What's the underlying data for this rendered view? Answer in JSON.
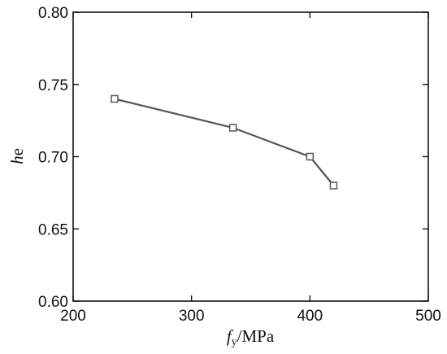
{
  "chart_data": {
    "type": "line",
    "title": "",
    "xlabel": {
      "var": "f",
      "sub": "y",
      "unit": "/MPa"
    },
    "ylabel": {
      "var": "h",
      "sub": "e"
    },
    "xlim": [
      200,
      500
    ],
    "ylim": [
      0.6,
      0.8
    ],
    "xticks": [
      "200",
      "300",
      "400",
      "500"
    ],
    "yticks": [
      "0.60",
      "0.65",
      "0.70",
      "0.75",
      "0.80"
    ],
    "grid": false,
    "legend": "none",
    "series": [
      {
        "x": [
          235,
          335,
          400,
          420
        ],
        "y": [
          0.74,
          0.72,
          0.7,
          0.68
        ],
        "marker": "open-square",
        "color": "#555555"
      }
    ]
  }
}
